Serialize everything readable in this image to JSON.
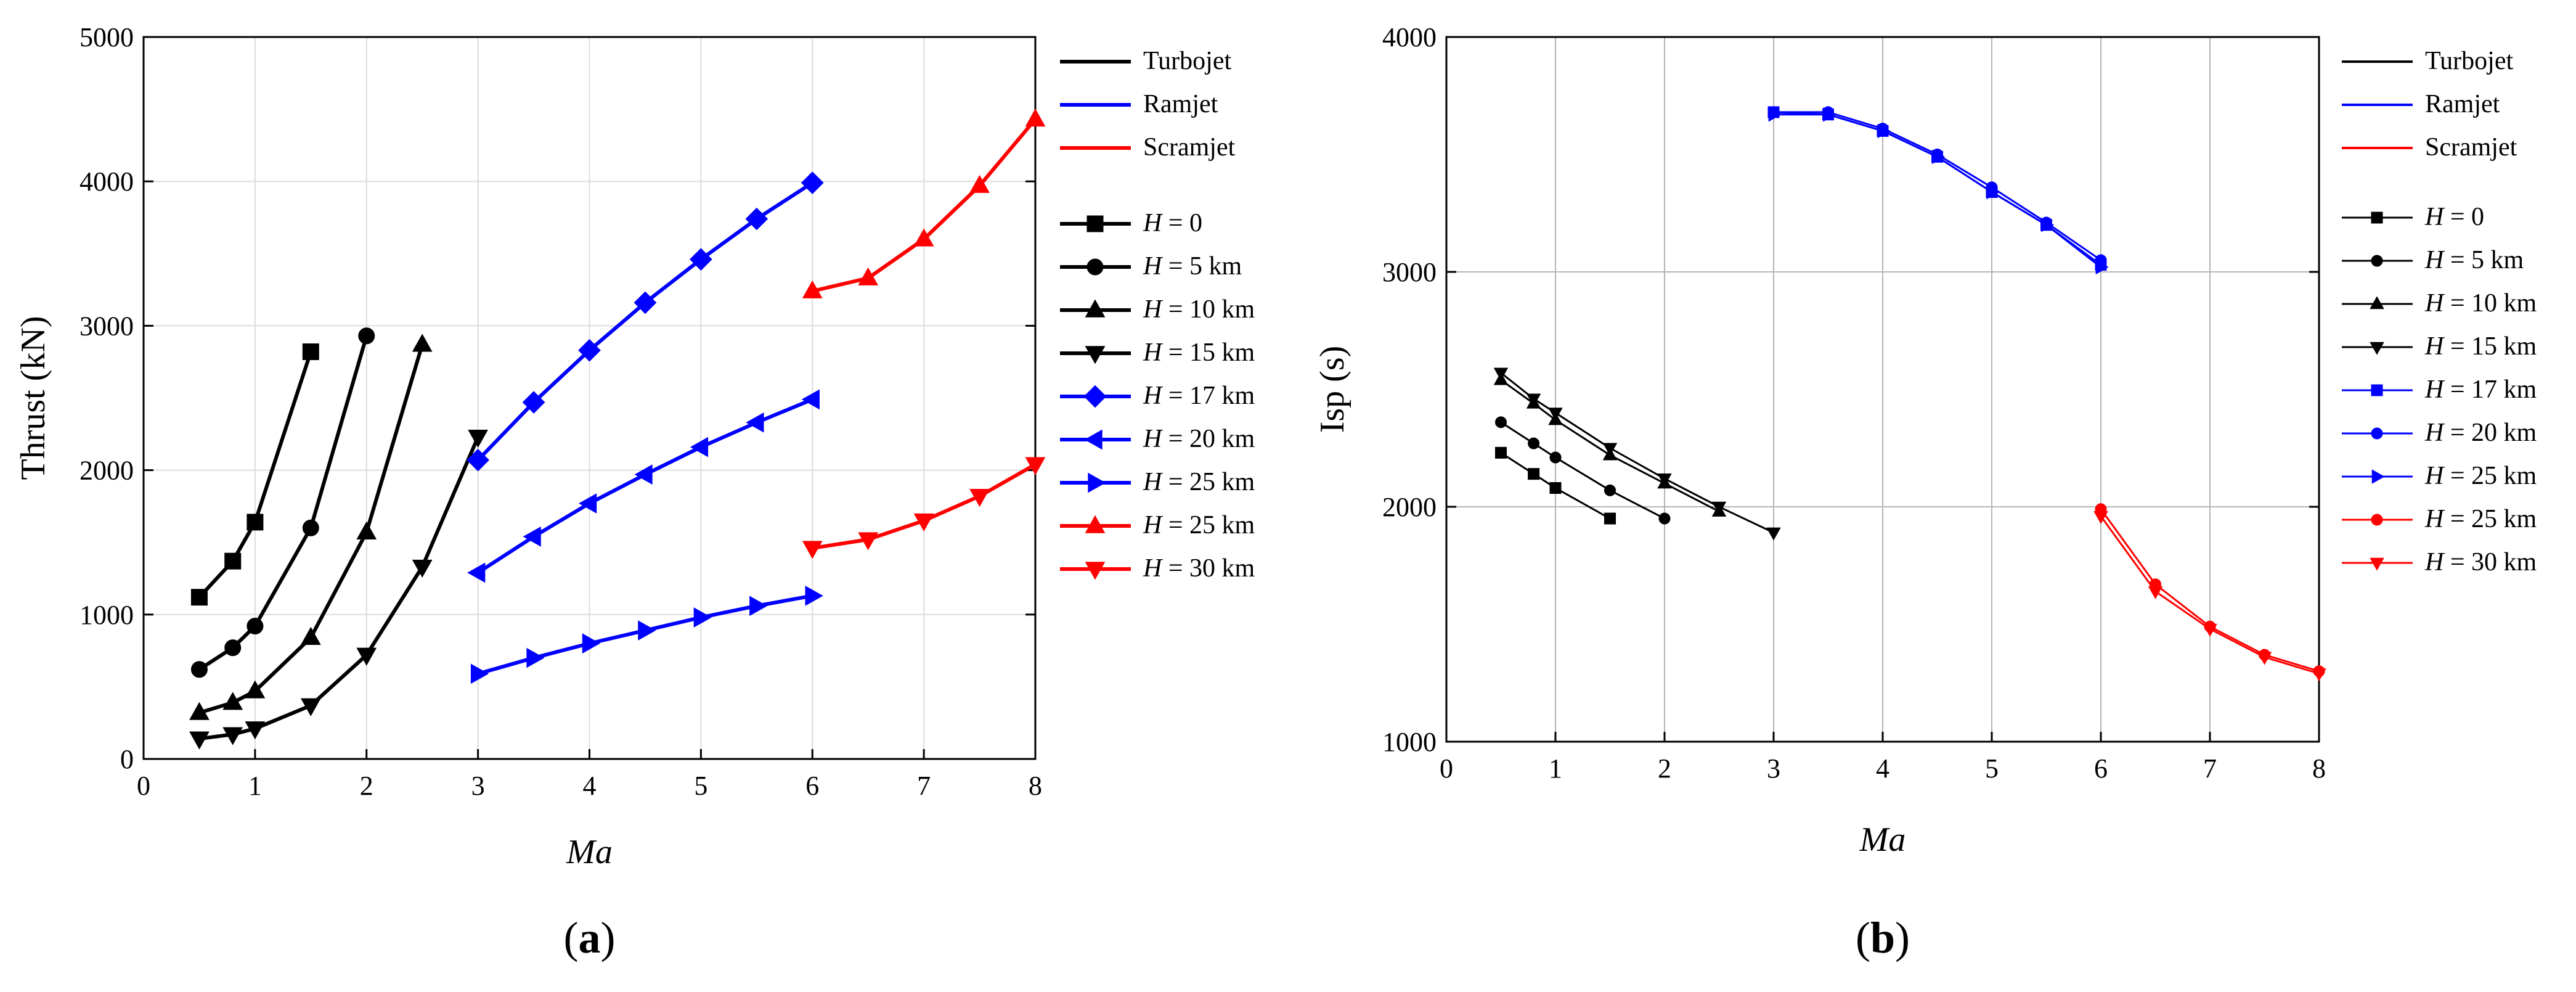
{
  "chart_data": [
    {
      "type": "line",
      "panel_label": "(a)",
      "panel_letter": "a",
      "xlabel": "Ma",
      "ylabel": "Thrust (kN)",
      "xlim": [
        0,
        8
      ],
      "ylim": [
        0,
        5000
      ],
      "xticks": [
        0,
        1,
        2,
        3,
        4,
        5,
        6,
        7,
        8
      ],
      "yticks": [
        0,
        1000,
        2000,
        3000,
        4000,
        5000
      ],
      "grid": true,
      "legend_position": "right",
      "legend_engines": [
        {
          "label": "Turbojet",
          "color": "#000000"
        },
        {
          "label": "Ramjet",
          "color": "#0000ff"
        },
        {
          "label": "Scramjet",
          "color": "#ff0000"
        }
      ],
      "legend_altitudes": [
        {
          "label": "H = 0",
          "var": "H",
          "rest": " = 0",
          "marker": "square",
          "color": "#000000"
        },
        {
          "label": "H = 5 km",
          "var": "H",
          "rest": " = 5 km",
          "marker": "circle",
          "color": "#000000"
        },
        {
          "label": "H = 10 km",
          "var": "H",
          "rest": " = 10 km",
          "marker": "triangle-up",
          "color": "#000000"
        },
        {
          "label": "H = 15 km",
          "var": "H",
          "rest": " = 15 km",
          "marker": "triangle-down",
          "color": "#000000"
        },
        {
          "label": "H = 17 km",
          "var": "H",
          "rest": " = 17 km",
          "marker": "diamond",
          "color": "#0000ff"
        },
        {
          "label": "H = 20 km",
          "var": "H",
          "rest": " = 20 km",
          "marker": "triangle-left",
          "color": "#0000ff"
        },
        {
          "label": "H = 25 km",
          "var": "H",
          "rest": " = 25 km",
          "marker": "triangle-right",
          "color": "#0000ff"
        },
        {
          "label": "H = 25 km",
          "var": "H",
          "rest": " = 25 km",
          "marker": "triangle-up",
          "color": "#ff0000"
        },
        {
          "label": "H = 30 km",
          "var": "H",
          "rest": " = 30 km",
          "marker": "triangle-down",
          "color": "#ff0000"
        }
      ],
      "series": [
        {
          "name": "Turbojet H = 0",
          "color": "#000000",
          "marker": "square",
          "x": [
            0.5,
            0.8,
            1.0,
            1.5
          ],
          "y": [
            1120,
            1370,
            1640,
            2820
          ]
        },
        {
          "name": "Turbojet H = 5 km",
          "color": "#000000",
          "marker": "circle",
          "x": [
            0.5,
            0.8,
            1.0,
            1.5,
            2.0
          ],
          "y": [
            620,
            770,
            920,
            1600,
            2930
          ]
        },
        {
          "name": "Turbojet H = 10 km",
          "color": "#000000",
          "marker": "triangle-up",
          "x": [
            0.5,
            0.8,
            1.0,
            1.5,
            2.0,
            2.5
          ],
          "y": [
            320,
            390,
            470,
            840,
            1570,
            2870
          ]
        },
        {
          "name": "Turbojet H = 15 km",
          "color": "#000000",
          "marker": "triangle-down",
          "x": [
            0.5,
            0.8,
            1.0,
            1.5,
            2.0,
            2.5,
            3.0
          ],
          "y": [
            140,
            170,
            210,
            370,
            720,
            1330,
            2230
          ]
        },
        {
          "name": "Ramjet H = 17 km",
          "color": "#0000ff",
          "marker": "diamond",
          "x": [
            3.0,
            3.5,
            4.0,
            4.5,
            5.0,
            5.5,
            6.0
          ],
          "y": [
            2070,
            2470,
            2830,
            3160,
            3460,
            3740,
            3990
          ]
        },
        {
          "name": "Ramjet H = 20 km",
          "color": "#0000ff",
          "marker": "triangle-left",
          "x": [
            3.0,
            3.5,
            4.0,
            4.5,
            5.0,
            5.5,
            6.0
          ],
          "y": [
            1290,
            1540,
            1770,
            1970,
            2160,
            2330,
            2490
          ]
        },
        {
          "name": "Ramjet H = 25 km",
          "color": "#0000ff",
          "marker": "triangle-right",
          "x": [
            3.0,
            3.5,
            4.0,
            4.5,
            5.0,
            5.5,
            6.0
          ],
          "y": [
            590,
            700,
            800,
            890,
            980,
            1060,
            1130
          ]
        },
        {
          "name": "Scramjet H = 25 km",
          "color": "#ff0000",
          "marker": "triangle-up",
          "x": [
            6.0,
            6.5,
            7.0,
            7.5,
            8.0
          ],
          "y": [
            3240,
            3330,
            3600,
            3970,
            4430
          ]
        },
        {
          "name": "Scramjet H = 30 km",
          "color": "#ff0000",
          "marker": "triangle-down",
          "x": [
            6.0,
            6.5,
            7.0,
            7.5,
            8.0
          ],
          "y": [
            1460,
            1520,
            1650,
            1820,
            2040
          ]
        }
      ]
    },
    {
      "type": "line",
      "panel_label": "(b)",
      "panel_letter": "b",
      "xlabel": "Ma",
      "ylabel": "Isp (s)",
      "xlim": [
        0,
        8
      ],
      "ylim": [
        1000,
        4000
      ],
      "xticks": [
        0,
        1,
        2,
        3,
        4,
        5,
        6,
        7,
        8
      ],
      "yticks": [
        1000,
        2000,
        3000,
        4000
      ],
      "grid": true,
      "legend_position": "right",
      "legend_engines": [
        {
          "label": "Turbojet",
          "color": "#000000"
        },
        {
          "label": "Ramjet",
          "color": "#0000ff"
        },
        {
          "label": "Scramjet",
          "color": "#ff0000"
        }
      ],
      "legend_altitudes": [
        {
          "label": "H = 0",
          "var": "H",
          "rest": " = 0",
          "marker": "square",
          "color": "#000000"
        },
        {
          "label": "H = 5 km",
          "var": "H",
          "rest": " = 5 km",
          "marker": "circle",
          "color": "#000000"
        },
        {
          "label": "H = 10 km",
          "var": "H",
          "rest": " = 10 km",
          "marker": "triangle-up",
          "color": "#000000"
        },
        {
          "label": "H = 15 km",
          "var": "H",
          "rest": " = 15 km",
          "marker": "triangle-down",
          "color": "#000000"
        },
        {
          "label": "H = 17 km",
          "var": "H",
          "rest": " = 17 km",
          "marker": "square",
          "color": "#0000ff"
        },
        {
          "label": "H = 20 km",
          "var": "H",
          "rest": " = 20 km",
          "marker": "circle",
          "color": "#0000ff"
        },
        {
          "label": "H = 25 km",
          "var": "H",
          "rest": " = 25 km",
          "marker": "triangle-right",
          "color": "#0000ff"
        },
        {
          "label": "H = 25 km",
          "var": "H",
          "rest": " = 25 km",
          "marker": "circle",
          "color": "#ff0000"
        },
        {
          "label": "H = 30 km",
          "var": "H",
          "rest": " = 30 km",
          "marker": "triangle-down",
          "color": "#ff0000"
        }
      ],
      "series": [
        {
          "name": "Turbojet H = 0",
          "color": "#000000",
          "marker": "square",
          "x": [
            0.5,
            0.8,
            1.0,
            1.5
          ],
          "y": [
            2230,
            2140,
            2080,
            1950
          ]
        },
        {
          "name": "Turbojet H = 5 km",
          "color": "#000000",
          "marker": "circle",
          "x": [
            0.5,
            0.8,
            1.0,
            1.5,
            2.0
          ],
          "y": [
            2360,
            2270,
            2210,
            2070,
            1950
          ]
        },
        {
          "name": "Turbojet H = 10 km",
          "color": "#000000",
          "marker": "triangle-up",
          "x": [
            0.5,
            0.8,
            1.0,
            1.5,
            2.0,
            2.5
          ],
          "y": [
            2540,
            2440,
            2370,
            2220,
            2100,
            1980
          ]
        },
        {
          "name": "Turbojet H = 15 km",
          "color": "#000000",
          "marker": "triangle-down",
          "x": [
            0.5,
            0.8,
            1.0,
            1.5,
            2.0,
            2.5,
            3.0
          ],
          "y": [
            2570,
            2460,
            2400,
            2250,
            2120,
            2000,
            1890
          ]
        },
        {
          "name": "Ramjet H = 17 km",
          "color": "#0000ff",
          "marker": "square",
          "x": [
            3.0,
            3.5,
            4.0,
            4.5,
            5.0,
            5.5,
            6.0
          ],
          "y": [
            3680,
            3670,
            3600,
            3490,
            3340,
            3200,
            3030
          ]
        },
        {
          "name": "Ramjet H = 20 km",
          "color": "#0000ff",
          "marker": "circle",
          "x": [
            3.0,
            3.5,
            4.0,
            4.5,
            5.0,
            5.5,
            6.0
          ],
          "y": [
            3680,
            3680,
            3610,
            3500,
            3360,
            3210,
            3050
          ]
        },
        {
          "name": "Ramjet H = 25 km",
          "color": "#0000ff",
          "marker": "triangle-right",
          "x": [
            3.0,
            3.5,
            4.0,
            4.5,
            5.0,
            5.5,
            6.0
          ],
          "y": [
            3670,
            3670,
            3600,
            3490,
            3340,
            3200,
            3020
          ]
        },
        {
          "name": "Scramjet H = 25 km",
          "color": "#ff0000",
          "marker": "circle",
          "x": [
            6.0,
            6.5,
            7.0,
            7.5,
            8.0
          ],
          "y": [
            1990,
            1670,
            1490,
            1370,
            1300
          ]
        },
        {
          "name": "Scramjet H = 30 km",
          "color": "#ff0000",
          "marker": "triangle-down",
          "x": [
            6.0,
            6.5,
            7.0,
            7.5,
            8.0
          ],
          "y": [
            1960,
            1640,
            1480,
            1360,
            1290
          ]
        }
      ]
    }
  ]
}
